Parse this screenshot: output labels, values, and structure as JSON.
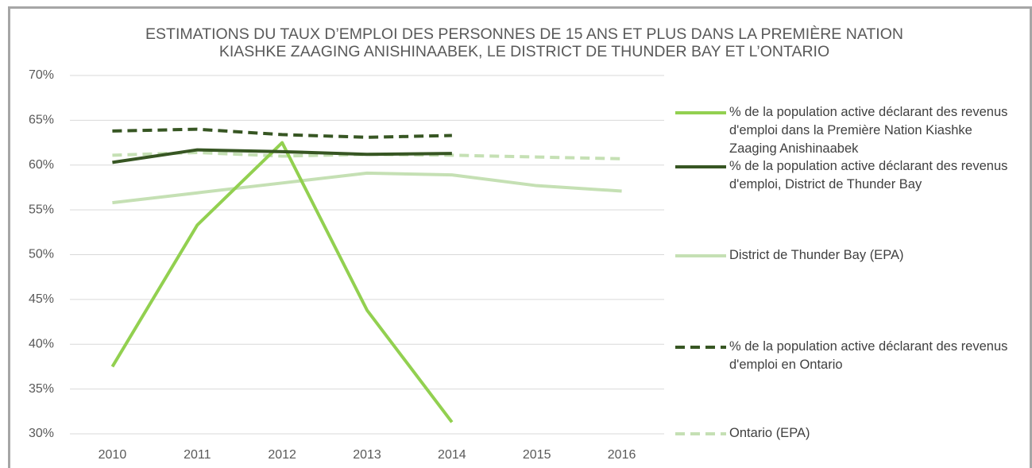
{
  "chart_data": {
    "type": "line",
    "title": [
      "ESTIMATIONS DU TAUX D’EMPLOI DES PERSONNES DE 15 ANS ET PLUS DANS LA PREMIÈRE NATION",
      "KIASHKE ZAAGING ANISHINAABEK, LE DISTRICT DE THUNDER BAY ET L’ONTARIO"
    ],
    "categories": [
      "2010",
      "2011",
      "2012",
      "2013",
      "2014",
      "2015",
      "2016"
    ],
    "ylim": [
      30,
      70
    ],
    "yticks": [
      {
        "value": 30,
        "label": "30%"
      },
      {
        "value": 35,
        "label": "35%"
      },
      {
        "value": 40,
        "label": "40%"
      },
      {
        "value": 45,
        "label": "45%"
      },
      {
        "value": 50,
        "label": "50%"
      },
      {
        "value": 55,
        "label": "55%"
      },
      {
        "value": 60,
        "label": "60%"
      },
      {
        "value": 65,
        "label": "65%"
      },
      {
        "value": 70,
        "label": "70%"
      }
    ],
    "grid": true,
    "legend": "right",
    "series": [
      {
        "name": "% de la population active déclarant des revenus d'emploi dans la Première Nation Kiashke Zaaging Anishinaabek",
        "color": "#92d050",
        "dashed": false,
        "values": [
          37.5,
          53.3,
          62.5,
          43.8,
          31.3,
          null,
          null
        ]
      },
      {
        "name": "% de la population active déclarant des revenus d'emploi, District de Thunder Bay",
        "color": "#375623",
        "dashed": false,
        "values": [
          60.3,
          61.7,
          61.5,
          61.2,
          61.3,
          null,
          null
        ]
      },
      {
        "name": "District de Thunder Bay (EPA)",
        "color": "#c5e0b4",
        "dashed": false,
        "values": [
          55.8,
          56.9,
          58.0,
          59.1,
          58.9,
          57.7,
          57.1
        ]
      },
      {
        "name": "% de la population active déclarant des revenus d'emploi en Ontario",
        "color": "#375623",
        "dashed": true,
        "values": [
          63.8,
          64.0,
          63.4,
          63.1,
          63.3,
          null,
          null
        ]
      },
      {
        "name": "Ontario (EPA)",
        "color": "#c5e0b4",
        "dashed": true,
        "values": [
          61.1,
          61.4,
          61.0,
          61.2,
          61.1,
          60.9,
          60.7
        ]
      }
    ]
  }
}
